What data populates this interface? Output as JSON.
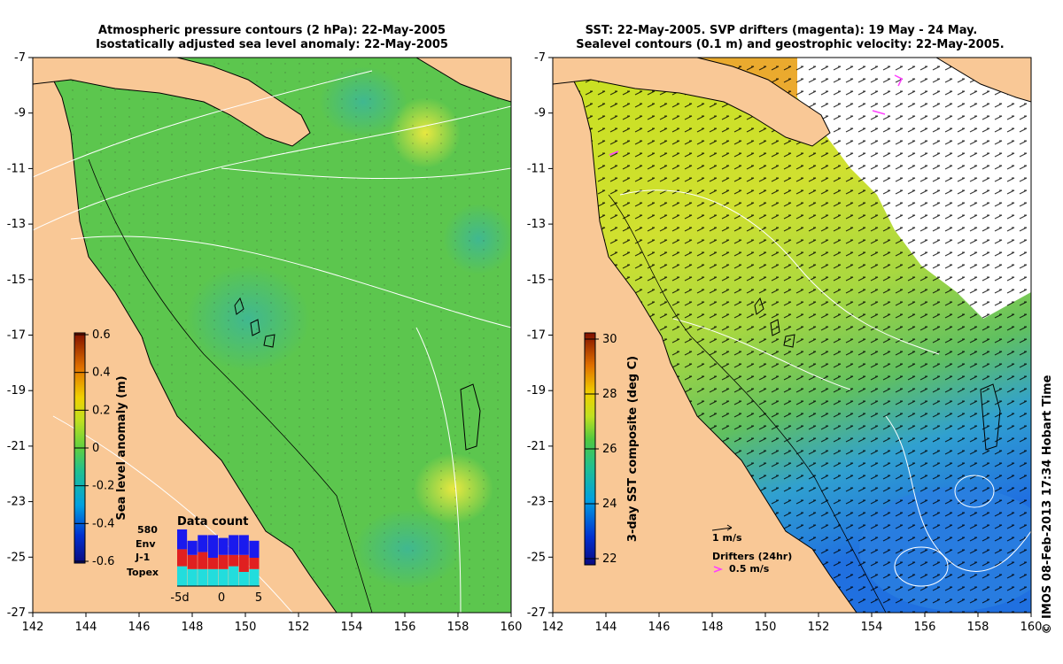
{
  "left_panel": {
    "title_line1": "Atmospheric pressure contours (2 hPa): 22-May-2005",
    "title_line2": "Isostatically adjusted sea level anomaly: 22-May-2005",
    "colorbar": {
      "label": "Sea level anomaly (m)",
      "ticks": [
        "0.6",
        "0.4",
        "0.2",
        "0",
        "-0.2",
        "-0.4",
        "-0.6"
      ]
    },
    "data_count": {
      "title": "Data count",
      "max_value": "580",
      "legend": [
        {
          "name": "Env",
          "color": "#1a1aee"
        },
        {
          "name": "J-1",
          "color": "#e02020"
        },
        {
          "name": "Topex",
          "color": "#22dddd"
        }
      ],
      "xticks": [
        "-5d",
        "0",
        "5"
      ],
      "bars": [
        {
          "topex": 0.35,
          "j1": 0.3,
          "env": 0.35
        },
        {
          "topex": 0.3,
          "j1": 0.25,
          "env": 0.25
        },
        {
          "topex": 0.3,
          "j1": 0.3,
          "env": 0.3
        },
        {
          "topex": 0.3,
          "j1": 0.2,
          "env": 0.4
        },
        {
          "topex": 0.3,
          "j1": 0.25,
          "env": 0.3
        },
        {
          "topex": 0.35,
          "j1": 0.2,
          "env": 0.35
        },
        {
          "topex": 0.25,
          "j1": 0.3,
          "env": 0.35
        },
        {
          "topex": 0.3,
          "j1": 0.2,
          "env": 0.3
        }
      ]
    }
  },
  "right_panel": {
    "title_line1": "SST: 22-May-2005. SVP drifters (magenta): 19 May - 24 May.",
    "title_line2": "Sealevel contours (0.1 m) and geostrophic velocity: 22-May-2005.",
    "colorbar": {
      "label": "3-day SST composite (deg C)",
      "ticks": [
        "30",
        "28",
        "26",
        "24",
        "22"
      ]
    },
    "scale_arrow_label": "1 m/s",
    "drifters_label": "Drifters (24hr)",
    "drifter_scale_label": "0.5 m/s"
  },
  "axes": {
    "x_ticks": [
      "142",
      "144",
      "146",
      "148",
      "150",
      "152",
      "154",
      "156",
      "158",
      "160"
    ],
    "y_ticks": [
      "-7",
      "-9",
      "-11",
      "-13",
      "-15",
      "-17",
      "-19",
      "-21",
      "-23",
      "-25",
      "-27"
    ]
  },
  "credit": "© IMOS 08-Feb-2013 17:34 Hobart Time",
  "colors": {
    "land": "#f9c896",
    "sla_green": "#5fc850",
    "sst_yellow": "#dde020",
    "sst_blue": "#2080e0",
    "magenta": "#ff40ff"
  }
}
